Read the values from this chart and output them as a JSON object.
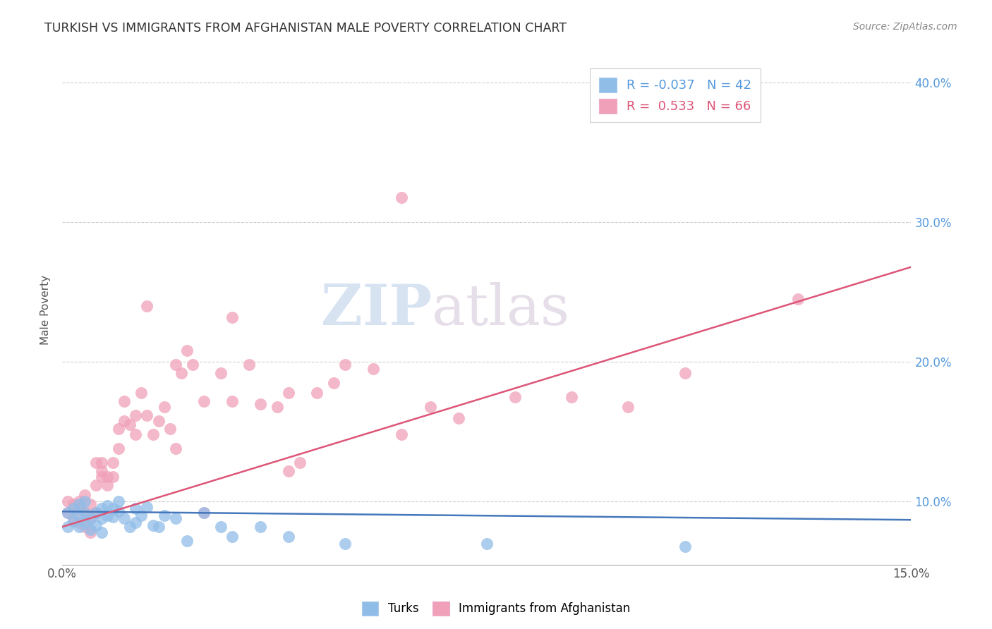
{
  "title": "TURKISH VS IMMIGRANTS FROM AFGHANISTAN MALE POVERTY CORRELATION CHART",
  "source": "Source: ZipAtlas.com",
  "ylabel": "Male Poverty",
  "xlim": [
    0.0,
    0.15
  ],
  "ylim": [
    0.055,
    0.42
  ],
  "yticks_right": [
    0.1,
    0.2,
    0.3,
    0.4
  ],
  "ytick_labels_right": [
    "10.0%",
    "20.0%",
    "30.0%",
    "40.0%"
  ],
  "xticks": [
    0.0,
    0.05,
    0.1,
    0.15
  ],
  "xtick_labels": [
    "0.0%",
    "",
    "",
    "15.0%"
  ],
  "legend_entries": [
    {
      "R": "-0.037",
      "N": "42"
    },
    {
      "R": "0.533",
      "N": "66"
    }
  ],
  "watermark_part1": "ZIP",
  "watermark_part2": "atlas",
  "background_color": "#ffffff",
  "grid_color": "#cccccc",
  "turks_color": "#90bde8",
  "turks_edge_color": "#6699cc",
  "afghanistan_color": "#f0a0b8",
  "afghanistan_edge_color": "#e06080",
  "turks_line_color": "#4477bb",
  "afghanistan_line_color": "#dd5577",
  "turks_scatter_x": [
    0.001,
    0.001,
    0.002,
    0.002,
    0.003,
    0.003,
    0.003,
    0.004,
    0.004,
    0.004,
    0.005,
    0.005,
    0.006,
    0.006,
    0.007,
    0.007,
    0.007,
    0.008,
    0.008,
    0.009,
    0.009,
    0.01,
    0.01,
    0.011,
    0.012,
    0.013,
    0.013,
    0.014,
    0.015,
    0.016,
    0.017,
    0.018,
    0.02,
    0.022,
    0.025,
    0.028,
    0.03,
    0.035,
    0.04,
    0.05,
    0.075,
    0.11
  ],
  "turks_scatter_y": [
    0.082,
    0.092,
    0.086,
    0.095,
    0.082,
    0.09,
    0.098,
    0.085,
    0.092,
    0.1,
    0.08,
    0.088,
    0.083,
    0.092,
    0.078,
    0.088,
    0.095,
    0.09,
    0.097,
    0.089,
    0.095,
    0.093,
    0.1,
    0.088,
    0.082,
    0.095,
    0.085,
    0.09,
    0.096,
    0.083,
    0.082,
    0.09,
    0.088,
    0.072,
    0.092,
    0.082,
    0.075,
    0.082,
    0.075,
    0.07,
    0.07,
    0.068
  ],
  "afghanistan_scatter_x": [
    0.001,
    0.001,
    0.002,
    0.002,
    0.003,
    0.003,
    0.003,
    0.004,
    0.004,
    0.004,
    0.005,
    0.005,
    0.005,
    0.006,
    0.006,
    0.006,
    0.007,
    0.007,
    0.007,
    0.008,
    0.008,
    0.009,
    0.009,
    0.01,
    0.01,
    0.011,
    0.011,
    0.012,
    0.013,
    0.013,
    0.014,
    0.015,
    0.016,
    0.017,
    0.018,
    0.019,
    0.02,
    0.021,
    0.022,
    0.023,
    0.025,
    0.028,
    0.03,
    0.033,
    0.035,
    0.038,
    0.04,
    0.042,
    0.045,
    0.048,
    0.05,
    0.055,
    0.06,
    0.065,
    0.07,
    0.08,
    0.09,
    0.1,
    0.11,
    0.13,
    0.04,
    0.025,
    0.06,
    0.03,
    0.02,
    0.015
  ],
  "afghanistan_scatter_y": [
    0.092,
    0.1,
    0.088,
    0.098,
    0.085,
    0.095,
    0.1,
    0.082,
    0.092,
    0.105,
    0.078,
    0.088,
    0.098,
    0.128,
    0.112,
    0.092,
    0.118,
    0.128,
    0.122,
    0.112,
    0.118,
    0.128,
    0.118,
    0.152,
    0.138,
    0.172,
    0.158,
    0.155,
    0.148,
    0.162,
    0.178,
    0.162,
    0.148,
    0.158,
    0.168,
    0.152,
    0.198,
    0.192,
    0.208,
    0.198,
    0.172,
    0.192,
    0.172,
    0.198,
    0.17,
    0.168,
    0.178,
    0.128,
    0.178,
    0.185,
    0.198,
    0.195,
    0.148,
    0.168,
    0.16,
    0.175,
    0.175,
    0.168,
    0.192,
    0.245,
    0.122,
    0.092,
    0.318,
    0.232,
    0.138,
    0.24
  ],
  "turks_trend_x": [
    0.0,
    0.15
  ],
  "turks_trend_y": [
    0.093,
    0.087
  ],
  "afghanistan_trend_x": [
    0.0,
    0.15
  ],
  "afghanistan_trend_y": [
    0.082,
    0.268
  ]
}
